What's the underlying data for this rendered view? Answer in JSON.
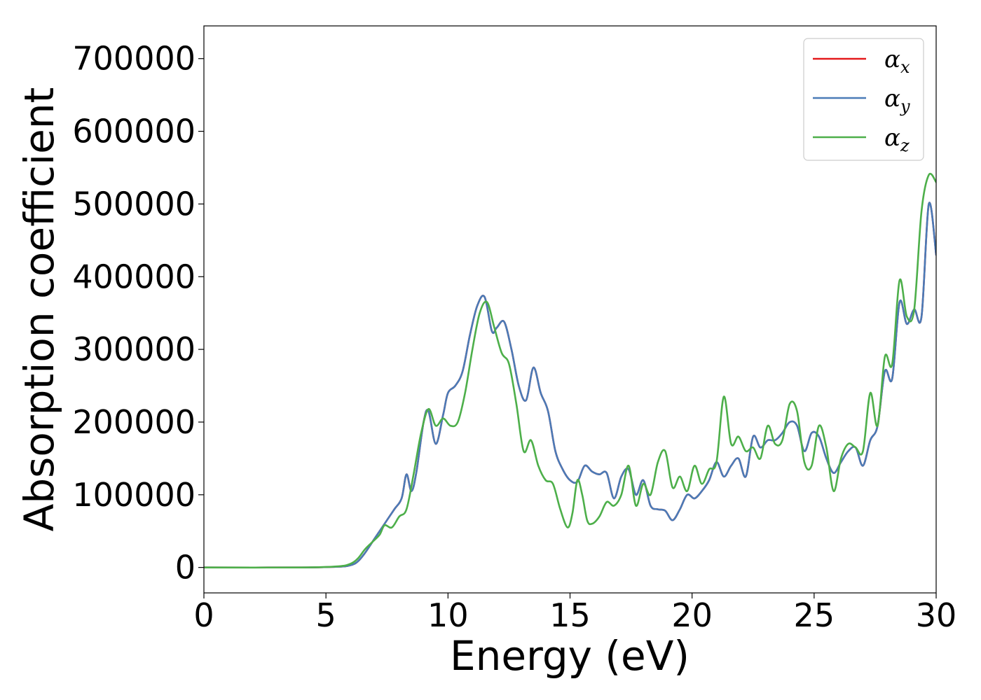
{
  "chart_data": {
    "type": "line",
    "title": "",
    "xlabel": "Energy (eV)",
    "ylabel": "Absorption coefficient",
    "xlim": [
      0,
      30
    ],
    "ylim": [
      -35000,
      745000
    ],
    "xticks": [
      0,
      5,
      10,
      15,
      20,
      25,
      30
    ],
    "xtick_labels": [
      "0",
      "5",
      "10",
      "15",
      "20",
      "25",
      "30"
    ],
    "yticks": [
      0,
      100000,
      200000,
      300000,
      400000,
      500000,
      600000,
      700000
    ],
    "ytick_labels": [
      "0",
      "100000",
      "200000",
      "300000",
      "400000",
      "500000",
      "600000",
      "700000"
    ],
    "grid": false,
    "legend_position": "top-right",
    "series": [
      {
        "name": "x",
        "legend_symbol": "α",
        "legend_subscript": "x",
        "color": "#e41a1c",
        "x": [
          0,
          4.0,
          5.5,
          6.0,
          6.3,
          6.6,
          7.0,
          7.4,
          7.8,
          8.1,
          8.3,
          8.5,
          8.7,
          9.0,
          9.2,
          9.5,
          9.8,
          10.0,
          10.3,
          10.6,
          10.9,
          11.2,
          11.5,
          11.8,
          12.0,
          12.3,
          12.6,
          12.9,
          13.2,
          13.5,
          13.8,
          14.1,
          14.4,
          14.7,
          15.0,
          15.3,
          15.6,
          15.9,
          16.2,
          16.5,
          16.8,
          17.1,
          17.4,
          17.7,
          18.0,
          18.3,
          18.6,
          18.9,
          19.2,
          19.5,
          19.8,
          20.1,
          20.4,
          20.7,
          21.0,
          21.3,
          21.6,
          21.9,
          22.2,
          22.5,
          22.8,
          23.1,
          23.4,
          23.7,
          24.0,
          24.3,
          24.6,
          24.9,
          25.2,
          25.5,
          25.8,
          26.1,
          26.4,
          26.7,
          27.0,
          27.3,
          27.6,
          27.9,
          28.2,
          28.5,
          28.8,
          29.1,
          29.4,
          29.7,
          30.0
        ],
        "y": [
          0,
          0,
          1000,
          3000,
          8000,
          20000,
          40000,
          60000,
          80000,
          95000,
          128000,
          105000,
          130000,
          200000,
          215000,
          170000,
          210000,
          240000,
          250000,
          270000,
          320000,
          360000,
          372000,
          325000,
          330000,
          338000,
          300000,
          250000,
          230000,
          275000,
          240000,
          215000,
          160000,
          135000,
          120000,
          118000,
          140000,
          132000,
          128000,
          130000,
          95000,
          125000,
          135000,
          100000,
          120000,
          85000,
          80000,
          78000,
          65000,
          80000,
          100000,
          95000,
          105000,
          120000,
          145000,
          125000,
          140000,
          150000,
          125000,
          180000,
          165000,
          175000,
          175000,
          185000,
          200000,
          195000,
          160000,
          185000,
          180000,
          150000,
          130000,
          145000,
          160000,
          165000,
          140000,
          175000,
          195000,
          270000,
          260000,
          365000,
          335000,
          355000,
          345000,
          500000,
          430000
        ]
      },
      {
        "name": "y",
        "legend_symbol": "α",
        "legend_subscript": "y",
        "color": "#4a7bb7",
        "x": [
          0,
          4.0,
          5.5,
          6.0,
          6.3,
          6.6,
          7.0,
          7.4,
          7.8,
          8.1,
          8.3,
          8.5,
          8.7,
          9.0,
          9.2,
          9.5,
          9.8,
          10.0,
          10.3,
          10.6,
          10.9,
          11.2,
          11.5,
          11.8,
          12.0,
          12.3,
          12.6,
          12.9,
          13.2,
          13.5,
          13.8,
          14.1,
          14.4,
          14.7,
          15.0,
          15.3,
          15.6,
          15.9,
          16.2,
          16.5,
          16.8,
          17.1,
          17.4,
          17.7,
          18.0,
          18.3,
          18.6,
          18.9,
          19.2,
          19.5,
          19.8,
          20.1,
          20.4,
          20.7,
          21.0,
          21.3,
          21.6,
          21.9,
          22.2,
          22.5,
          22.8,
          23.1,
          23.4,
          23.7,
          24.0,
          24.3,
          24.6,
          24.9,
          25.2,
          25.5,
          25.8,
          26.1,
          26.4,
          26.7,
          27.0,
          27.3,
          27.6,
          27.9,
          28.2,
          28.5,
          28.8,
          29.1,
          29.4,
          29.7,
          30.0
        ],
        "y": [
          0,
          0,
          1000,
          3000,
          8000,
          20000,
          40000,
          60000,
          80000,
          95000,
          128000,
          105000,
          130000,
          200000,
          215000,
          170000,
          210000,
          240000,
          250000,
          270000,
          320000,
          360000,
          372000,
          325000,
          330000,
          338000,
          300000,
          250000,
          230000,
          275000,
          240000,
          215000,
          160000,
          135000,
          120000,
          118000,
          140000,
          132000,
          128000,
          130000,
          95000,
          125000,
          135000,
          100000,
          120000,
          85000,
          80000,
          78000,
          65000,
          80000,
          100000,
          95000,
          105000,
          120000,
          145000,
          125000,
          140000,
          150000,
          125000,
          180000,
          165000,
          175000,
          175000,
          185000,
          200000,
          195000,
          160000,
          185000,
          180000,
          150000,
          130000,
          145000,
          160000,
          165000,
          140000,
          175000,
          195000,
          270000,
          260000,
          365000,
          335000,
          355000,
          345000,
          500000,
          430000
        ]
      },
      {
        "name": "z",
        "legend_symbol": "α",
        "legend_subscript": "z",
        "color": "#4daf4a",
        "x": [
          0,
          4.0,
          5.5,
          6.0,
          6.3,
          6.6,
          6.9,
          7.2,
          7.4,
          7.7,
          8.0,
          8.3,
          8.6,
          8.9,
          9.2,
          9.5,
          9.8,
          10.1,
          10.4,
          10.7,
          11.0,
          11.3,
          11.6,
          11.9,
          12.2,
          12.5,
          12.8,
          13.1,
          13.4,
          13.7,
          14.0,
          14.3,
          14.6,
          14.9,
          15.1,
          15.3,
          15.5,
          15.7,
          15.9,
          16.2,
          16.5,
          16.8,
          17.1,
          17.4,
          17.7,
          18.0,
          18.3,
          18.6,
          18.9,
          19.2,
          19.5,
          19.8,
          20.1,
          20.4,
          20.7,
          21.0,
          21.3,
          21.6,
          21.9,
          22.2,
          22.5,
          22.8,
          23.1,
          23.4,
          23.7,
          24.0,
          24.3,
          24.6,
          24.9,
          25.2,
          25.5,
          25.8,
          26.1,
          26.4,
          26.7,
          27.0,
          27.3,
          27.6,
          27.9,
          28.2,
          28.5,
          28.8,
          29.1,
          29.4,
          29.7,
          30.0
        ],
        "y": [
          0,
          0,
          1500,
          5000,
          12000,
          25000,
          35000,
          45000,
          58000,
          55000,
          70000,
          80000,
          130000,
          185000,
          218000,
          195000,
          205000,
          195000,
          200000,
          240000,
          300000,
          350000,
          365000,
          330000,
          295000,
          280000,
          225000,
          160000,
          175000,
          140000,
          120000,
          115000,
          80000,
          55000,
          75000,
          120000,
          100000,
          65000,
          60000,
          70000,
          90000,
          85000,
          100000,
          140000,
          85000,
          115000,
          100000,
          145000,
          160000,
          110000,
          125000,
          105000,
          140000,
          115000,
          135000,
          145000,
          235000,
          170000,
          180000,
          160000,
          165000,
          150000,
          195000,
          170000,
          175000,
          225000,
          215000,
          145000,
          140000,
          195000,
          165000,
          105000,
          150000,
          170000,
          165000,
          160000,
          240000,
          195000,
          290000,
          280000,
          395000,
          345000,
          355000,
          490000,
          540000,
          530000
        ]
      }
    ]
  }
}
